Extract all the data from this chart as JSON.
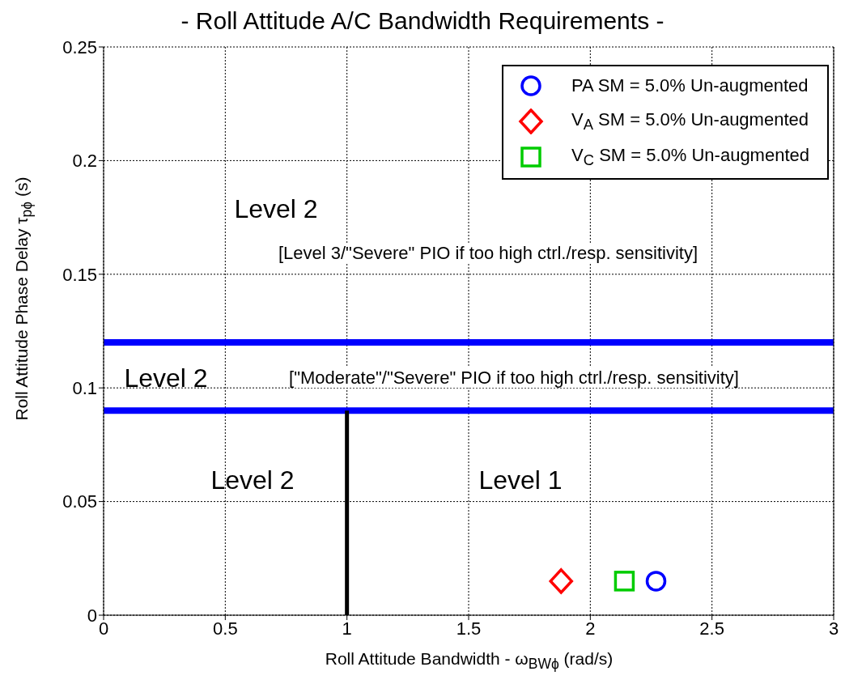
{
  "chart_data": {
    "type": "scatter",
    "title": "- Roll Attitude A/C Bandwidth Requirements -",
    "xlabel": "Roll Attitude Bandwidth  -  ω$_{BWϕ}$ (rad/s)",
    "ylabel": "Roll Attitude Phase Delay    τ$_{pϕ}$ (s)",
    "xlim": [
      0,
      3
    ],
    "xticks": [
      0,
      0.5,
      1,
      1.5,
      2,
      2.5,
      3
    ],
    "ylim": [
      0,
      0.25
    ],
    "yticks": [
      0,
      0.05,
      0.1,
      0.15,
      0.2,
      0.25
    ],
    "grid": true,
    "legend": "top right",
    "series": [
      {
        "name": "PA SM = 5.0% Un-augmented",
        "color": "#0000ff",
        "marker": "circle",
        "x": [
          2.27
        ],
        "values": [
          0.015
        ]
      },
      {
        "name": "V$_{A}$ SM = 5.0% Un-augmented",
        "color": "#ff0000",
        "marker": "diamond",
        "x": [
          1.88
        ],
        "values": [
          0.015
        ]
      },
      {
        "name": "V$_{C}$ SM = 5.0% Un-augmented",
        "color": "#00cc00",
        "marker": "square",
        "x": [
          2.14
        ],
        "values": [
          0.015
        ]
      },
      {
        "type": "line",
        "color": "#000000",
        "x": [
          1,
          1
        ],
        "values": [
          0,
          0.09
        ]
      }
    ],
    "ref_lines": [
      {
        "axis": "y",
        "value": 0.12,
        "color": "#0000ff"
      },
      {
        "axis": "y",
        "value": 0.09,
        "color": "#0000ff"
      }
    ],
    "annotations": [
      "Level 2",
      "[Level 3/\"Severe\" PIO if too high ctrl./resp. sensitivity]",
      "Level 2",
      "[\"Moderate\"/\"Severe\" PIO if too high ctrl./resp. sensitivity]",
      "Level 2",
      "Level 1"
    ]
  }
}
